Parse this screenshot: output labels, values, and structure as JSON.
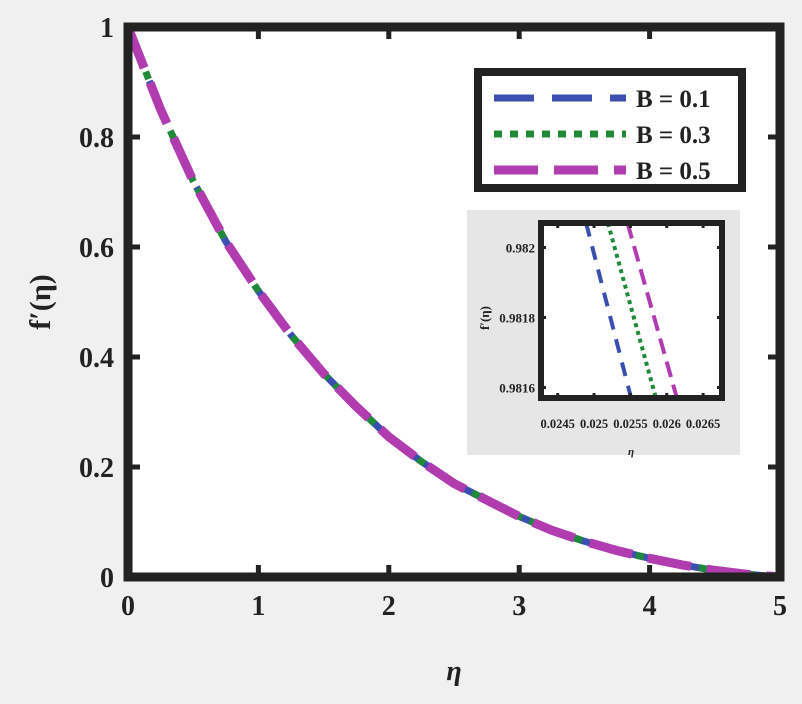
{
  "chart_data": [
    {
      "type": "line",
      "xlabel": "η",
      "ylabel": "f′(η)",
      "xlim": [
        0,
        5
      ],
      "ylim": [
        0,
        1
      ],
      "xticks": [
        "0",
        "1",
        "2",
        "3",
        "4",
        "5"
      ],
      "yticks": [
        "0",
        "0.2",
        "0.4",
        "0.6",
        "0.8",
        "1"
      ],
      "grid": false,
      "legend_position": "top-right",
      "x": [
        0,
        0.25,
        0.5,
        0.75,
        1,
        1.25,
        1.5,
        1.75,
        2,
        2.25,
        2.5,
        2.75,
        3,
        3.25,
        3.5,
        3.75,
        4,
        4.25,
        4.5,
        4.75,
        5
      ],
      "series": [
        {
          "name": "B = 0.1",
          "color": "#3a4fb0",
          "style": "dash",
          "values": [
            1,
            0.85,
            0.72,
            0.61,
            0.52,
            0.44,
            0.37,
            0.31,
            0.255,
            0.21,
            0.17,
            0.14,
            0.11,
            0.085,
            0.065,
            0.048,
            0.034,
            0.022,
            0.012,
            0.005,
            0
          ]
        },
        {
          "name": "B = 0.3",
          "color": "#1f8a3a",
          "style": "dot",
          "values": [
            1,
            0.85,
            0.72,
            0.61,
            0.52,
            0.44,
            0.37,
            0.31,
            0.255,
            0.21,
            0.17,
            0.14,
            0.11,
            0.085,
            0.065,
            0.048,
            0.034,
            0.022,
            0.012,
            0.005,
            0
          ]
        },
        {
          "name": "B = 0.5",
          "color": "#b03cb0",
          "style": "longdash",
          "values": [
            1,
            0.85,
            0.72,
            0.61,
            0.52,
            0.44,
            0.37,
            0.31,
            0.255,
            0.21,
            0.17,
            0.14,
            0.11,
            0.085,
            0.065,
            0.048,
            0.034,
            0.022,
            0.012,
            0.005,
            0
          ]
        }
      ]
    },
    {
      "type": "line",
      "xlabel": "η",
      "ylabel": "f′(η)",
      "xlim": [
        0.02427,
        0.02676
      ],
      "ylim": [
        0.98157,
        0.98207
      ],
      "xticks": [
        "0.0245",
        "0.025",
        "0.0255",
        "0.026",
        "0.0265"
      ],
      "yticks": [
        "0.9816",
        "0.9818",
        "0.982"
      ],
      "series": [
        {
          "name": "B = 0.1",
          "color": "#3a4fb0",
          "style": "dash",
          "x": [
            0.02489,
            0.02551
          ],
          "values": [
            0.98207,
            0.98157
          ]
        },
        {
          "name": "B = 0.3",
          "color": "#1f8a3a",
          "style": "dot",
          "x": [
            0.02519,
            0.02585
          ],
          "values": [
            0.98207,
            0.98157
          ]
        },
        {
          "name": "B = 0.5",
          "color": "#b03cb0",
          "style": "longdash",
          "x": [
            0.02546,
            0.02614
          ],
          "values": [
            0.98207,
            0.98157
          ]
        }
      ]
    }
  ]
}
